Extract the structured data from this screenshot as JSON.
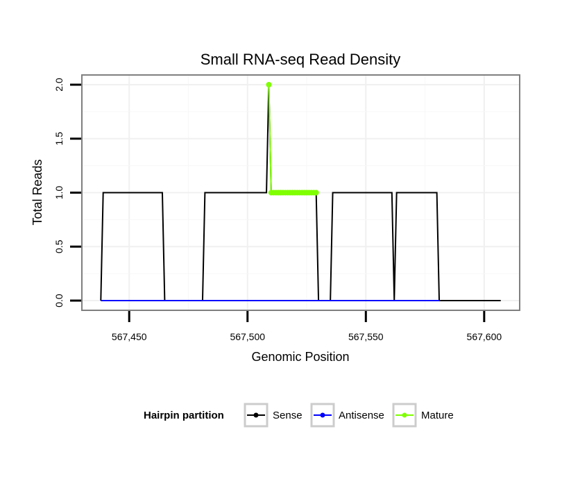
{
  "chart_data": {
    "type": "line",
    "title": "Small RNA-seq Read Density",
    "xlabel": "Genomic Position",
    "ylabel": "Total Reads",
    "xlim": [
      567430,
      567615
    ],
    "ylim": [
      -0.09,
      2.09
    ],
    "x_ticks": [
      567450,
      567500,
      567550,
      567600
    ],
    "x_tick_labels": [
      "567,450",
      "567,500",
      "567,550",
      "567,600"
    ],
    "y_ticks": [
      0,
      0.5,
      1,
      1.5,
      2
    ],
    "y_tick_labels": [
      "0.0",
      "0.5",
      "1.0",
      "1.5",
      "2.0"
    ],
    "grid": true,
    "legend": {
      "title": "Hairpin partition",
      "position": "bottom",
      "entries": [
        {
          "name": "Sense",
          "color": "#000000"
        },
        {
          "name": "Antisense",
          "color": "#0000ff"
        },
        {
          "name": "Mature",
          "color": "#7fff00"
        }
      ]
    },
    "series": [
      {
        "name": "Sense",
        "color": "#000000",
        "show_points": false,
        "points": [
          [
            567438,
            0
          ],
          [
            567439,
            1
          ],
          [
            567464,
            1
          ],
          [
            567465,
            0
          ],
          [
            567481,
            0
          ],
          [
            567482,
            1
          ],
          [
            567508,
            1
          ],
          [
            567509,
            2
          ],
          [
            567510,
            1
          ],
          [
            567529,
            1
          ],
          [
            567530,
            0
          ],
          [
            567535,
            0
          ],
          [
            567536,
            1
          ],
          [
            567561,
            1
          ],
          [
            567562,
            0
          ],
          [
            567563,
            1
          ],
          [
            567580,
            1
          ],
          [
            567581,
            0
          ],
          [
            567607,
            0
          ]
        ]
      },
      {
        "name": "Antisense",
        "color": "#0000ff",
        "show_points": false,
        "points": [
          [
            567438,
            0
          ],
          [
            567581,
            0
          ]
        ]
      },
      {
        "name": "Mature",
        "color": "#7fff00",
        "show_points": true,
        "points": [
          [
            567509,
            2
          ],
          [
            567510,
            1
          ],
          [
            567511,
            1
          ],
          [
            567512,
            1
          ],
          [
            567513,
            1
          ],
          [
            567514,
            1
          ],
          [
            567515,
            1
          ],
          [
            567516,
            1
          ],
          [
            567517,
            1
          ],
          [
            567518,
            1
          ],
          [
            567519,
            1
          ],
          [
            567520,
            1
          ],
          [
            567521,
            1
          ],
          [
            567522,
            1
          ],
          [
            567523,
            1
          ],
          [
            567524,
            1
          ],
          [
            567525,
            1
          ],
          [
            567526,
            1
          ],
          [
            567527,
            1
          ],
          [
            567528,
            1
          ],
          [
            567529,
            1
          ]
        ]
      }
    ]
  }
}
